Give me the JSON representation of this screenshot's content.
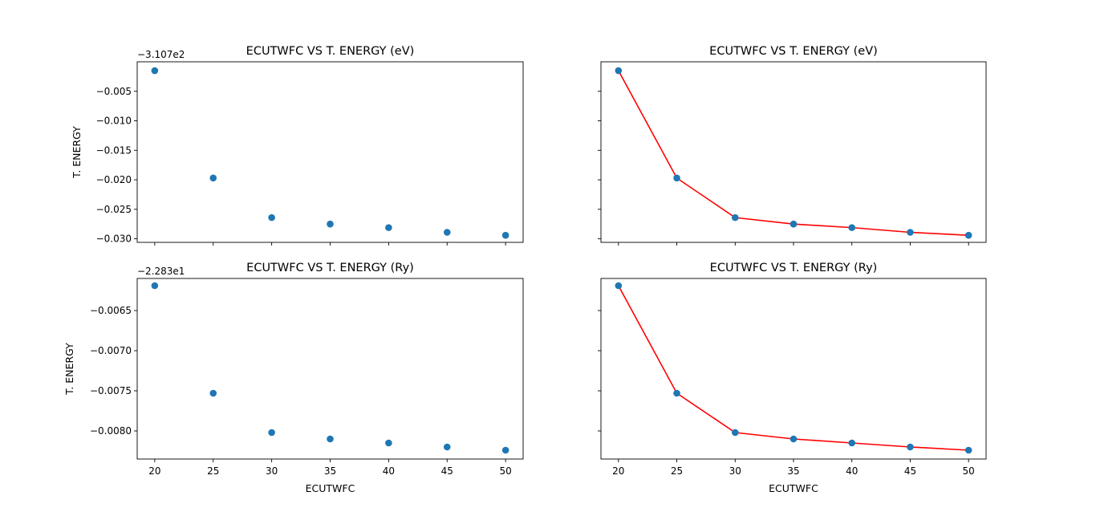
{
  "chart_data": [
    {
      "type": "scatter",
      "title": "ECUTWFC VS T. ENERGY (eV)",
      "xlabel": "",
      "ylabel": "T. ENERGY",
      "y_offset_label": "−3.107e2",
      "x": [
        20,
        25,
        30,
        35,
        40,
        45,
        50
      ],
      "series": [
        {
          "values": [
            -0.0015,
            -0.0197,
            -0.0264,
            -0.0275,
            -0.0281,
            -0.0289,
            -0.0294
          ]
        }
      ],
      "xlim": [
        18.5,
        51.5
      ],
      "ylim": [
        -0.0306,
        0.0
      ],
      "xticks": [
        20,
        25,
        30,
        35,
        40,
        45,
        50
      ],
      "xtick_labels_visible": false,
      "yticks": [
        -0.005,
        -0.01,
        -0.015,
        -0.02,
        -0.025,
        -0.03
      ],
      "ytick_labels": [
        "−0.005",
        "−0.010",
        "−0.015",
        "−0.020",
        "−0.025",
        "−0.030"
      ],
      "marker_color": "#1f77b4",
      "line": false
    },
    {
      "type": "line",
      "title": "ECUTWFC VS T. ENERGY (eV)",
      "xlabel": "",
      "ylabel": "",
      "x": [
        20,
        25,
        30,
        35,
        40,
        45,
        50
      ],
      "series": [
        {
          "values": [
            -0.0015,
            -0.0197,
            -0.0264,
            -0.0275,
            -0.0281,
            -0.0289,
            -0.0294
          ]
        }
      ],
      "xlim": [
        18.5,
        51.5
      ],
      "ylim": [
        -0.0306,
        0.0
      ],
      "xticks": [
        20,
        25,
        30,
        35,
        40,
        45,
        50
      ],
      "xtick_labels_visible": false,
      "yticks": [
        -0.005,
        -0.01,
        -0.015,
        -0.02,
        -0.025,
        -0.03
      ],
      "ytick_labels_visible": false,
      "marker_color": "#1f77b4",
      "line": true,
      "line_color": "#ff0000"
    },
    {
      "type": "scatter",
      "title": "ECUTWFC VS T. ENERGY (Ry)",
      "xlabel": "ECUTWFC",
      "ylabel": "T. ENERGY",
      "y_offset_label": "−2.283e1",
      "x": [
        20,
        25,
        30,
        35,
        40,
        45,
        50
      ],
      "series": [
        {
          "values": [
            -0.00619,
            -0.00753,
            -0.00802,
            -0.0081,
            -0.00815,
            -0.0082,
            -0.00824
          ]
        }
      ],
      "xlim": [
        18.5,
        51.5
      ],
      "ylim": [
        -0.00835,
        -0.0061
      ],
      "xticks": [
        20,
        25,
        30,
        35,
        40,
        45,
        50
      ],
      "xtick_labels": [
        "20",
        "25",
        "30",
        "35",
        "40",
        "45",
        "50"
      ],
      "yticks": [
        -0.0065,
        -0.007,
        -0.0075,
        -0.008
      ],
      "ytick_labels": [
        "−0.0065",
        "−0.0070",
        "−0.0075",
        "−0.0080"
      ],
      "marker_color": "#1f77b4",
      "line": false
    },
    {
      "type": "line",
      "title": "ECUTWFC VS T. ENERGY (Ry)",
      "xlabel": "ECUTWFC",
      "ylabel": "",
      "x": [
        20,
        25,
        30,
        35,
        40,
        45,
        50
      ],
      "series": [
        {
          "values": [
            -0.00619,
            -0.00753,
            -0.00802,
            -0.0081,
            -0.00815,
            -0.0082,
            -0.00824
          ]
        }
      ],
      "xlim": [
        18.5,
        51.5
      ],
      "ylim": [
        -0.00835,
        -0.0061
      ],
      "xticks": [
        20,
        25,
        30,
        35,
        40,
        45,
        50
      ],
      "xtick_labels": [
        "20",
        "25",
        "30",
        "35",
        "40",
        "45",
        "50"
      ],
      "yticks": [
        -0.0065,
        -0.007,
        -0.0075,
        -0.008
      ],
      "ytick_labels_visible": false,
      "marker_color": "#1f77b4",
      "line": true,
      "line_color": "#ff0000"
    }
  ]
}
